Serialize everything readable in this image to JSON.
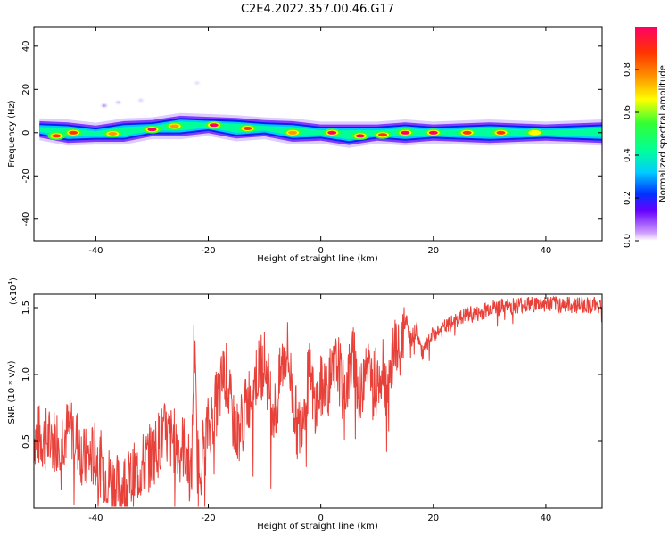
{
  "title": "C2E4.2022.357.00.46.G17",
  "colors": {
    "snr_line": "#e8413a",
    "axis": "#000000",
    "spectrum_ramp": [
      "#ffffff",
      "#cc99ff",
      "#3300ff",
      "#0033ff",
      "#00ccff",
      "#00ff99",
      "#33ff33",
      "#ffff00",
      "#ff9900",
      "#ff3300",
      "#ff0066"
    ]
  },
  "chart_data": [
    {
      "type": "heatmap",
      "title": "",
      "xlabel": "Height of straight line (km)",
      "ylabel": "Frequency (Hz)",
      "xlim": [
        -51,
        50
      ],
      "ylim": [
        -50,
        49
      ],
      "x_ticks": [
        -40,
        -20,
        0,
        20,
        40
      ],
      "y_ticks": [
        40,
        20,
        0,
        -20,
        -40
      ],
      "grid": false,
      "colorbar": {
        "label": "Normalized spectral amplitude",
        "range": [
          0,
          1
        ],
        "ticks": [
          "0.0",
          "0.2",
          "0.4",
          "0.6",
          "0.8"
        ]
      },
      "ridge": [
        {
          "x": -50,
          "f": 1.5
        },
        {
          "x": -45,
          "f": 0
        },
        {
          "x": -40,
          "f": -0.5
        },
        {
          "x": -35,
          "f": 0.5
        },
        {
          "x": -30,
          "f": 2
        },
        {
          "x": -25,
          "f": 3
        },
        {
          "x": -20,
          "f": 3.5
        },
        {
          "x": -15,
          "f": 2
        },
        {
          "x": -10,
          "f": 2
        },
        {
          "x": -5,
          "f": 0.5
        },
        {
          "x": 0,
          "f": 0
        },
        {
          "x": 5,
          "f": -1
        },
        {
          "x": 10,
          "f": 0
        },
        {
          "x": 15,
          "f": 0
        },
        {
          "x": 20,
          "f": 0
        },
        {
          "x": 30,
          "f": 0
        },
        {
          "x": 40,
          "f": 0
        },
        {
          "x": 50,
          "f": 0
        }
      ],
      "hotspots": [
        {
          "x": -47,
          "f": -1.5,
          "a": 0.9
        },
        {
          "x": -44,
          "f": 0,
          "a": 0.85
        },
        {
          "x": -37,
          "f": -0.5,
          "a": 0.75
        },
        {
          "x": -30,
          "f": 1.5,
          "a": 1.0
        },
        {
          "x": -26,
          "f": 3,
          "a": 0.8
        },
        {
          "x": -19,
          "f": 3.5,
          "a": 0.95
        },
        {
          "x": -13,
          "f": 2,
          "a": 0.85
        },
        {
          "x": -5,
          "f": 0,
          "a": 0.8
        },
        {
          "x": 2,
          "f": 0,
          "a": 1.0
        },
        {
          "x": 7,
          "f": -1.5,
          "a": 1.0
        },
        {
          "x": 11,
          "f": -1,
          "a": 0.9
        },
        {
          "x": 15,
          "f": 0,
          "a": 0.95
        },
        {
          "x": 20,
          "f": 0,
          "a": 0.95
        },
        {
          "x": 26,
          "f": 0,
          "a": 0.9
        },
        {
          "x": 32,
          "f": 0,
          "a": 0.85
        },
        {
          "x": 38,
          "f": 0,
          "a": 0.7
        }
      ],
      "faint_spots": [
        {
          "x": -38.5,
          "f": 12.5,
          "a": 0.35
        },
        {
          "x": -36,
          "f": 14,
          "a": 0.2
        },
        {
          "x": -32,
          "f": 15,
          "a": 0.15
        },
        {
          "x": -22,
          "f": 23,
          "a": 0.12
        }
      ]
    },
    {
      "type": "line",
      "title": "",
      "xlabel": "Height of straight line (km)",
      "ylabel": "SNR (10 * v/v)",
      "y_multiplier": "(x10",
      "y_multiplier_exponent": "4",
      "y_multiplier_close": ")",
      "xlim": [
        -51,
        50
      ],
      "ylim": [
        0,
        1.6
      ],
      "x_ticks": [
        -40,
        -20,
        0,
        20,
        40
      ],
      "y_ticks": [
        "0.5",
        "1.0",
        "1.5"
      ],
      "y_tick_values": [
        0.5,
        1.0,
        1.5
      ],
      "grid": false,
      "series": [
        {
          "x": [
            -51,
            -48,
            -46,
            -44,
            -42,
            -40,
            -38,
            -36,
            -34,
            -32,
            -30,
            -28,
            -26,
            -24,
            -23,
            -22.5,
            -22,
            -21,
            -20,
            -18,
            -17,
            -16,
            -15,
            -14,
            -12,
            -10,
            -9,
            -8,
            -7,
            -6,
            -5,
            -4,
            -3,
            -2,
            -1,
            0,
            2,
            3,
            4,
            5,
            6,
            7,
            8,
            9,
            10,
            11,
            12,
            13,
            14,
            15,
            16,
            17,
            18,
            20,
            22,
            24,
            26,
            28,
            30,
            32,
            35,
            40,
            45,
            50
          ],
          "y": [
            0.55,
            0.5,
            0.55,
            0.6,
            0.35,
            0.4,
            0.25,
            0.15,
            0.2,
            0.3,
            0.4,
            0.55,
            0.5,
            0.45,
            0.2,
            1.35,
            0.35,
            0.45,
            0.6,
            0.85,
            1.05,
            0.75,
            0.55,
            0.65,
            0.95,
            1.1,
            0.85,
            0.7,
            1.05,
            1.2,
            0.85,
            0.55,
            0.8,
            1.0,
            0.75,
            0.9,
            0.95,
            1.1,
            0.85,
            1.0,
            1.15,
            0.75,
            1.2,
            0.9,
            1.0,
            1.1,
            0.8,
            1.25,
            1.1,
            1.45,
            1.25,
            1.35,
            1.15,
            1.3,
            1.35,
            1.4,
            1.45,
            1.45,
            1.5,
            1.5,
            1.52,
            1.53,
            1.52,
            1.52
          ]
        }
      ]
    }
  ]
}
